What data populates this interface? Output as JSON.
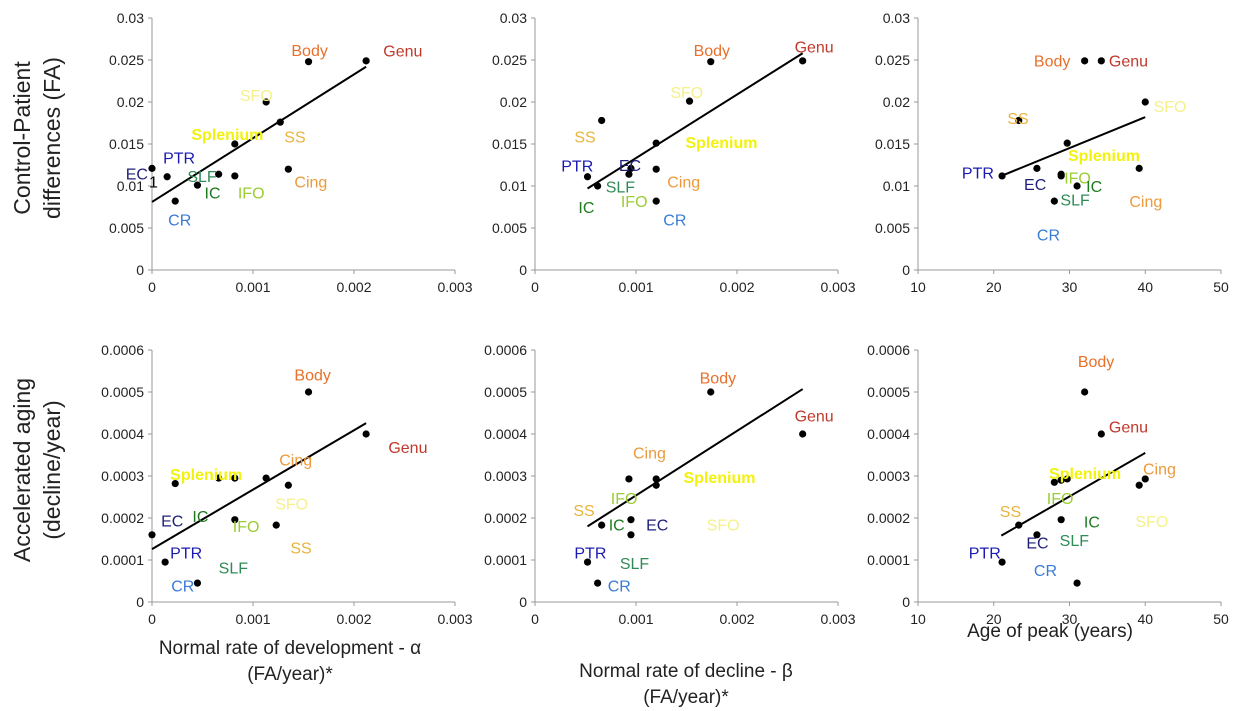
{
  "colors": {
    "Body": "#e8702a",
    "Genu": "#c0392b",
    "SFO": "#f5f08a",
    "SS": "#e9b43c",
    "Splenium": "#f2f20c",
    "PTR": "#1a1ab0",
    "EC": "#1f1f7a",
    "SLF": "#2e8b57",
    "IC": "#1e7a1e",
    "IFO": "#9acd32",
    "CR": "#3a7bd5",
    "Cing": "#ec9a3b"
  },
  "row_titles": [
    [
      "Control-Patient",
      "differences (FA)"
    ],
    [
      "Accelerated aging",
      "(decline/year)"
    ]
  ],
  "x_titles": [
    [
      "Normal rate of development - α",
      "(FA/year)*"
    ],
    [
      "Normal rate of decline - β",
      "(FA/year)*"
    ],
    [
      "Age of peak (years)"
    ]
  ],
  "chart_data": [
    {
      "type": "scatter",
      "row": 0,
      "col": 0,
      "xlim": [
        0,
        0.003
      ],
      "ylim": [
        0,
        0.03
      ],
      "xticks": [
        "0",
        "0.001",
        "0.002",
        "0.003"
      ],
      "yticks": [
        "0",
        "0.005",
        "0.01",
        "0.015",
        "0.02",
        "0.025",
        "0.03"
      ],
      "points": [
        {
          "x": 0.00155,
          "y": 0.0248
        },
        {
          "x": 0.00212,
          "y": 0.0249
        },
        {
          "x": 0.00113,
          "y": 0.02
        },
        {
          "x": 0.00127,
          "y": 0.0176
        },
        {
          "x": 0.00135,
          "y": 0.012
        },
        {
          "x": 0.00082,
          "y": 0.015
        },
        {
          "x": 0.00015,
          "y": 0.0111
        },
        {
          "x": 0.0,
          "y": 0.0121
        },
        {
          "x": 0.00045,
          "y": 0.0101
        },
        {
          "x": 0.00066,
          "y": 0.0114
        },
        {
          "x": 0.00082,
          "y": 0.0112
        },
        {
          "x": 0.00023,
          "y": 0.0082
        }
      ],
      "trend": [
        [
          0.0,
          0.0081
        ],
        [
          0.00212,
          0.0242
        ]
      ],
      "labels": [
        {
          "text": "Body",
          "x": 0.00138,
          "y": 0.0255
        },
        {
          "text": "Genu",
          "x": 0.00229,
          "y": 0.0254
        },
        {
          "text": "SFO",
          "x": 0.00087,
          "y": 0.0201
        },
        {
          "text": "SS",
          "x": 0.00131,
          "y": 0.0152
        },
        {
          "text": "Splenium",
          "x": 0.00039,
          "y": 0.0155
        },
        {
          "text": "PTR",
          "x": 0.00011,
          "y": 0.0127
        },
        {
          "text": "EC",
          "x": -0.00026,
          "y": 0.0108
        },
        {
          "text": "SLF",
          "x": 0.00035,
          "y": 0.0105
        },
        {
          "text": "IC",
          "x": 0.00052,
          "y": 0.0085
        },
        {
          "text": "IFO",
          "x": 0.00085,
          "y": 0.0085
        },
        {
          "text": "Cing",
          "x": 0.00141,
          "y": 0.0098
        },
        {
          "text": "CR",
          "x": 0.00016,
          "y": 0.0053
        },
        {
          "text": "1",
          "x": -3e-05,
          "y": 0.0098
        }
      ]
    },
    {
      "type": "scatter",
      "row": 0,
      "col": 1,
      "xlim": [
        0,
        0.003
      ],
      "ylim": [
        0,
        0.03
      ],
      "xticks": [
        "0",
        "0.001",
        "0.002",
        "0.003"
      ],
      "yticks": [
        "0",
        "0.005",
        "0.01",
        "0.015",
        "0.02",
        "0.025",
        "0.03"
      ],
      "points": [
        {
          "x": 0.00174,
          "y": 0.0248
        },
        {
          "x": 0.00265,
          "y": 0.0249
        },
        {
          "x": 0.00153,
          "y": 0.0201
        },
        {
          "x": 0.00066,
          "y": 0.0178
        },
        {
          "x": 0.0012,
          "y": 0.0151
        },
        {
          "x": 0.0012,
          "y": 0.012
        },
        {
          "x": 0.00052,
          "y": 0.0111
        },
        {
          "x": 0.00095,
          "y": 0.0121
        },
        {
          "x": 0.00093,
          "y": 0.0114
        },
        {
          "x": 0.00062,
          "y": 0.01
        },
        {
          "x": 0.0012,
          "y": 0.0082
        }
      ],
      "trend": [
        [
          0.00052,
          0.0097
        ],
        [
          0.00265,
          0.0258
        ]
      ],
      "labels": [
        {
          "text": "Body",
          "x": 0.00157,
          "y": 0.0255
        },
        {
          "text": "Genu",
          "x": 0.00257,
          "y": 0.0259
        },
        {
          "text": "SFO",
          "x": 0.00134,
          "y": 0.0205
        },
        {
          "text": "SS",
          "x": 0.00039,
          "y": 0.0152
        },
        {
          "text": "Splenium",
          "x": 0.00149,
          "y": 0.0145
        },
        {
          "text": "PTR",
          "x": 0.00026,
          "y": 0.0117
        },
        {
          "text": "EC",
          "x": 0.00083,
          "y": 0.0118
        },
        {
          "text": "SLF",
          "x": 0.0007,
          "y": 0.0092
        },
        {
          "text": "Cing",
          "x": 0.00131,
          "y": 0.0098
        },
        {
          "text": "IC",
          "x": 0.00043,
          "y": 0.0068
        },
        {
          "text": "IFO",
          "x": 0.00085,
          "y": 0.0075
        },
        {
          "text": "CR",
          "x": 0.00127,
          "y": 0.0053
        }
      ]
    },
    {
      "type": "scatter",
      "row": 0,
      "col": 2,
      "xlim": [
        10,
        50
      ],
      "ylim": [
        0,
        0.03
      ],
      "xticks": [
        "10",
        "20",
        "30",
        "40",
        "50"
      ],
      "yticks": [
        "0",
        "0.005",
        "0.01",
        "0.015",
        "0.02",
        "0.025",
        "0.03"
      ],
      "points": [
        {
          "x": 32,
          "y": 0.0249
        },
        {
          "x": 34.2,
          "y": 0.0249
        },
        {
          "x": 40,
          "y": 0.02
        },
        {
          "x": 23.3,
          "y": 0.0178
        },
        {
          "x": 29.7,
          "y": 0.0151
        },
        {
          "x": 39.2,
          "y": 0.0121
        },
        {
          "x": 21.1,
          "y": 0.0112
        },
        {
          "x": 25.7,
          "y": 0.0121
        },
        {
          "x": 28.9,
          "y": 0.0114
        },
        {
          "x": 28.9,
          "y": 0.0112
        },
        {
          "x": 31,
          "y": 0.01
        },
        {
          "x": 28,
          "y": 0.0082
        }
      ],
      "trend": [
        [
          21,
          0.0112
        ],
        [
          40,
          0.0182
        ]
      ],
      "labels": [
        {
          "text": "Body",
          "x": 25.3,
          "y": 0.0242
        },
        {
          "text": "Genu",
          "x": 35.2,
          "y": 0.0242
        },
        {
          "text": "SFO",
          "x": 41.1,
          "y": 0.0188
        },
        {
          "text": "SS",
          "x": 21.8,
          "y": 0.0174
        },
        {
          "text": "Splenium",
          "x": 29.8,
          "y": 0.013
        },
        {
          "text": "PTR",
          "x": 15.8,
          "y": 0.0109
        },
        {
          "text": "EC",
          "x": 24.0,
          "y": 0.0095
        },
        {
          "text": "IFO",
          "x": 29.3,
          "y": 0.0103
        },
        {
          "text": "IC",
          "x": 32.2,
          "y": 0.0093
        },
        {
          "text": "SLF",
          "x": 28.8,
          "y": 0.0077
        },
        {
          "text": "Cing",
          "x": 37.9,
          "y": 0.0075
        },
        {
          "text": "CR",
          "x": 25.7,
          "y": 0.0035
        }
      ]
    },
    {
      "type": "scatter",
      "row": 1,
      "col": 0,
      "xlim": [
        0,
        0.003
      ],
      "ylim": [
        0,
        0.0006
      ],
      "xticks": [
        "0",
        "0.001",
        "0.002",
        "0.003"
      ],
      "yticks": [
        "0",
        "0.0001",
        "0.0002",
        "0.0003",
        "0.0004",
        "0.0005",
        "0.0006"
      ],
      "points": [
        {
          "x": 0.00155,
          "y": 0.0005
        },
        {
          "x": 0.00212,
          "y": 0.0004
        },
        {
          "x": 0.00023,
          "y": 0.000282
        },
        {
          "x": 0.00066,
          "y": 0.000295
        },
        {
          "x": 0.00082,
          "y": 0.000295
        },
        {
          "x": 0.00113,
          "y": 0.000295
        },
        {
          "x": 0.00135,
          "y": 0.000278
        },
        {
          "x": 0.00082,
          "y": 0.000196
        },
        {
          "x": 0.00123,
          "y": 0.000183
        },
        {
          "x": 0.0,
          "y": 0.00016
        },
        {
          "x": 0.00013,
          "y": 9.5e-05
        },
        {
          "x": 0.00045,
          "y": 4.5e-05
        }
      ],
      "trend": [
        [
          0.0,
          0.000126
        ],
        [
          0.00212,
          0.000426
        ]
      ],
      "labels": [
        {
          "text": "Body",
          "x": 0.00141,
          "y": 0.000527
        },
        {
          "text": "Genu",
          "x": 0.00234,
          "y": 0.000355
        },
        {
          "text": "Splenium",
          "x": 0.00018,
          "y": 0.00029
        },
        {
          "text": "Cing",
          "x": 0.00126,
          "y": 0.000325
        },
        {
          "text": "SFO",
          "x": 0.00122,
          "y": 0.00022
        },
        {
          "text": "EC",
          "x": 9e-05,
          "y": 0.00018
        },
        {
          "text": "IC",
          "x": 0.0004,
          "y": 0.00019
        },
        {
          "text": "IFO",
          "x": 0.0008,
          "y": 0.000167
        },
        {
          "text": "SS",
          "x": 0.00137,
          "y": 0.000115
        },
        {
          "text": "PTR",
          "x": 0.00018,
          "y": 0.000103
        },
        {
          "text": "SLF",
          "x": 0.00066,
          "y": 6.8e-05
        },
        {
          "text": "CR",
          "x": 0.00019,
          "y": 2.5e-05
        }
      ]
    },
    {
      "type": "scatter",
      "row": 1,
      "col": 1,
      "xlim": [
        0,
        0.003
      ],
      "ylim": [
        0,
        0.0006
      ],
      "xticks": [
        "0",
        "0.001",
        "0.002",
        "0.003"
      ],
      "yticks": [
        "0",
        "0.0001",
        "0.0002",
        "0.0003",
        "0.0004",
        "0.0005",
        "0.0006"
      ],
      "points": [
        {
          "x": 0.00174,
          "y": 0.0005
        },
        {
          "x": 0.00265,
          "y": 0.0004
        },
        {
          "x": 0.00093,
          "y": 0.000293
        },
        {
          "x": 0.0012,
          "y": 0.000293
        },
        {
          "x": 0.0012,
          "y": 0.000278
        },
        {
          "x": 0.00095,
          "y": 0.000196
        },
        {
          "x": 0.00066,
          "y": 0.000183
        },
        {
          "x": 0.00095,
          "y": 0.00016
        },
        {
          "x": 0.00052,
          "y": 9.5e-05
        },
        {
          "x": 0.00062,
          "y": 4.5e-05
        }
      ],
      "trend": [
        [
          0.00052,
          0.00018
        ],
        [
          0.00265,
          0.000507
        ]
      ],
      "labels": [
        {
          "text": "Body",
          "x": 0.00163,
          "y": 0.00052
        },
        {
          "text": "Genu",
          "x": 0.00257,
          "y": 0.00043
        },
        {
          "text": "Cing",
          "x": 0.00097,
          "y": 0.000342
        },
        {
          "text": "Splenium",
          "x": 0.00147,
          "y": 0.000283
        },
        {
          "text": "IFO",
          "x": 0.00075,
          "y": 0.000233
        },
        {
          "text": "SFO",
          "x": 0.0017,
          "y": 0.00017
        },
        {
          "text": "SS",
          "x": 0.00038,
          "y": 0.000205
        },
        {
          "text": "IC",
          "x": 0.00073,
          "y": 0.00017
        },
        {
          "text": "EC",
          "x": 0.0011,
          "y": 0.00017
        },
        {
          "text": "PTR",
          "x": 0.00039,
          "y": 0.000103
        },
        {
          "text": "SLF",
          "x": 0.00084,
          "y": 7.8e-05
        },
        {
          "text": "CR",
          "x": 0.00072,
          "y": 2.5e-05
        }
      ]
    },
    {
      "type": "scatter",
      "row": 1,
      "col": 2,
      "xlim": [
        10,
        50
      ],
      "ylim": [
        0,
        0.0006
      ],
      "xticks": [
        "10",
        "20",
        "30",
        "40",
        "50"
      ],
      "yticks": [
        "0",
        "0.0001",
        "0.0002",
        "0.0003",
        "0.0004",
        "0.0005",
        "0.0006"
      ],
      "points": [
        {
          "x": 32,
          "y": 0.0005
        },
        {
          "x": 34.2,
          "y": 0.0004
        },
        {
          "x": 28,
          "y": 0.000285
        },
        {
          "x": 28.9,
          "y": 0.00029
        },
        {
          "x": 29.7,
          "y": 0.000293
        },
        {
          "x": 40,
          "y": 0.000293
        },
        {
          "x": 39.2,
          "y": 0.000278
        },
        {
          "x": 28.9,
          "y": 0.000196
        },
        {
          "x": 23.3,
          "y": 0.000183
        },
        {
          "x": 25.7,
          "y": 0.00016
        },
        {
          "x": 21.1,
          "y": 9.5e-05
        },
        {
          "x": 31,
          "y": 4.5e-05
        }
      ],
      "trend": [
        [
          21,
          0.000158
        ],
        [
          40,
          0.000355
        ]
      ],
      "labels": [
        {
          "text": "Body",
          "x": 31.1,
          "y": 0.00056
        },
        {
          "text": "Genu",
          "x": 35.2,
          "y": 0.000403
        },
        {
          "text": "Cing",
          "x": 39.7,
          "y": 0.000303
        },
        {
          "text": "Splenium",
          "x": 27.3,
          "y": 0.000293
        },
        {
          "text": "IFO",
          "x": 27.0,
          "y": 0.000233
        },
        {
          "text": "SFO",
          "x": 38.7,
          "y": 0.000178
        },
        {
          "text": "SS",
          "x": 20.8,
          "y": 0.000202
        },
        {
          "text": "IC",
          "x": 31.9,
          "y": 0.000177
        },
        {
          "text": "EC",
          "x": 24.3,
          "y": 0.000127
        },
        {
          "text": "SLF",
          "x": 28.7,
          "y": 0.000133
        },
        {
          "text": "PTR",
          "x": 16.7,
          "y": 0.000103
        },
        {
          "text": "CR",
          "x": 25.3,
          "y": 6.2e-05
        }
      ]
    }
  ]
}
